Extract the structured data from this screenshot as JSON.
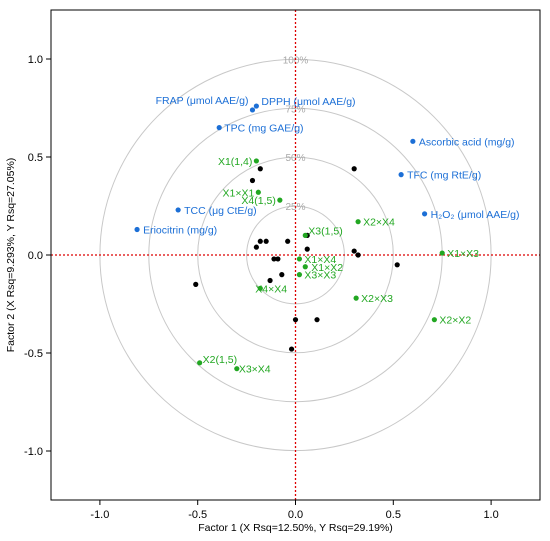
{
  "chart_data": {
    "type": "scatter",
    "xlabel": "Factor 1 (X Rsq=12.50%, Y Rsq=29.19%)",
    "ylabel": "Factor 2 (X Rsq=9.293%, Y Rsq=27.05%)",
    "xlim": [
      -1.25,
      1.25
    ],
    "ylim": [
      -1.25,
      1.25
    ],
    "xticks": [
      -1.0,
      -0.5,
      0.0,
      0.5,
      1.0
    ],
    "yticks": [
      -1.0,
      -0.5,
      0.0,
      0.5,
      1.0
    ],
    "xtick_labels": [
      "-1.0",
      "-0.5",
      "0.0",
      "0.5",
      "1.0"
    ],
    "ytick_labels": [
      "-1.0",
      "-0.5",
      "0.0",
      "0.5",
      "1.0"
    ],
    "grid": false,
    "circles": [
      {
        "r": 1.0,
        "label": "100%"
      },
      {
        "r": 0.75,
        "label": "75%"
      },
      {
        "r": 0.5,
        "label": "50%"
      },
      {
        "r": 0.25,
        "label": "25%"
      }
    ],
    "colors": {
      "responses": "#1c6fd6",
      "factors": "#22a722",
      "observations": "#000000",
      "reference": "#dd0000",
      "circle": "#c8c8c8"
    },
    "responses": [
      {
        "label": "FRAP (μmol AAE/g)",
        "x": -0.22,
        "y": 0.74
      },
      {
        "label": "DPPH (μmol AAE/g)",
        "x": -0.2,
        "y": 0.76
      },
      {
        "label": "TPC (mg GAE/g)",
        "x": -0.39,
        "y": 0.65
      },
      {
        "label": "Ascorbic acid (mg/g)",
        "x": 0.6,
        "y": 0.58
      },
      {
        "label": "TFC (mg RtE/g)",
        "x": 0.54,
        "y": 0.41
      },
      {
        "label": "H₂O₂ (μmol AAE/g)",
        "x": 0.66,
        "y": 0.21
      },
      {
        "label": "TCC (μg CtE/g)",
        "x": -0.6,
        "y": 0.23
      },
      {
        "label": "Eriocitrin (mg/g)",
        "x": -0.81,
        "y": 0.13
      }
    ],
    "factors": [
      {
        "label": "X1(1,4)",
        "x": -0.2,
        "y": 0.48
      },
      {
        "label": "X1×X1",
        "x": -0.19,
        "y": 0.32
      },
      {
        "label": "X4(1,5)",
        "x": -0.08,
        "y": 0.28
      },
      {
        "label": "X3(1,5)",
        "x": 0.05,
        "y": 0.1
      },
      {
        "label": "X2×X4",
        "x": 0.32,
        "y": 0.17
      },
      {
        "label": "X1×X3",
        "x": 0.75,
        "y": 0.01
      },
      {
        "label": "X1×X4",
        "x": 0.02,
        "y": -0.02
      },
      {
        "label": "X1×X2",
        "x": 0.05,
        "y": -0.06
      },
      {
        "label": "X3×X3",
        "x": 0.02,
        "y": -0.1
      },
      {
        "label": "X4×X4",
        "x": -0.18,
        "y": -0.17
      },
      {
        "label": "X2×X3",
        "x": 0.31,
        "y": -0.22
      },
      {
        "label": "X2×X2",
        "x": 0.71,
        "y": -0.33
      },
      {
        "label": "X2(1,5)",
        "x": -0.49,
        "y": -0.55
      },
      {
        "label": "X3×X4",
        "x": -0.3,
        "y": -0.58
      }
    ],
    "observations": [
      {
        "x": -0.18,
        "y": 0.44
      },
      {
        "x": -0.22,
        "y": 0.38
      },
      {
        "x": 0.3,
        "y": 0.44
      },
      {
        "x": -0.2,
        "y": 0.04
      },
      {
        "x": -0.18,
        "y": 0.07
      },
      {
        "x": -0.15,
        "y": 0.07
      },
      {
        "x": -0.04,
        "y": 0.07
      },
      {
        "x": -0.11,
        "y": -0.02
      },
      {
        "x": -0.09,
        "y": -0.02
      },
      {
        "x": -0.07,
        "y": -0.1
      },
      {
        "x": -0.13,
        "y": -0.13
      },
      {
        "x": -0.51,
        "y": -0.15
      },
      {
        "x": 0.06,
        "y": 0.03
      },
      {
        "x": 0.06,
        "y": 0.1
      },
      {
        "x": 0.3,
        "y": 0.02
      },
      {
        "x": 0.32,
        "y": 0.0
      },
      {
        "x": 0.52,
        "y": -0.05
      },
      {
        "x": 0.0,
        "y": -0.33
      },
      {
        "x": 0.11,
        "y": -0.33
      },
      {
        "x": -0.02,
        "y": -0.48
      }
    ]
  }
}
